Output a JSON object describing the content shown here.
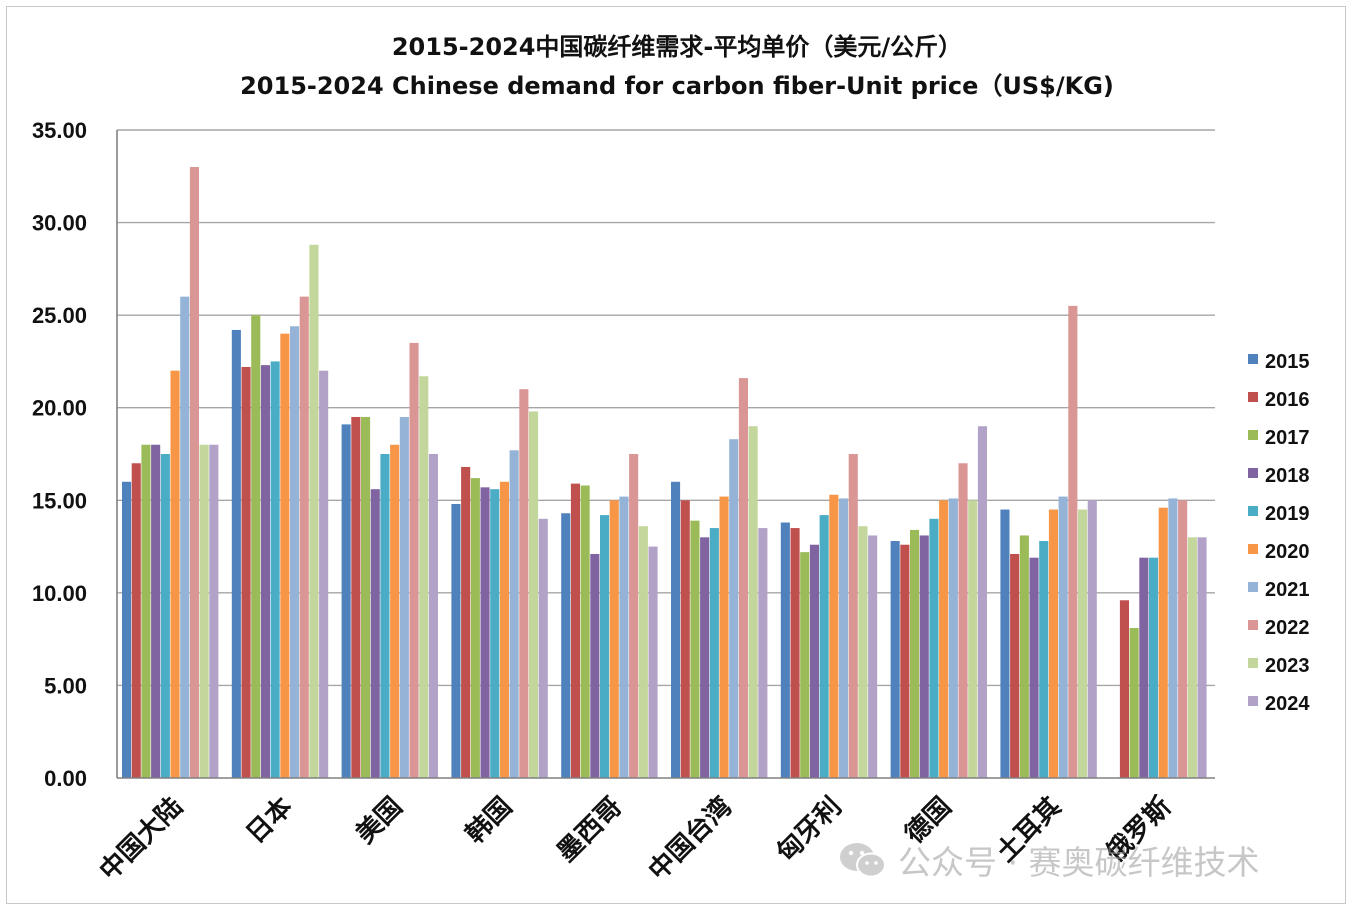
{
  "chart_data": {
    "type": "bar",
    "title": "2015-2024中国碳纤维需求-平均单价（美元/公斤）",
    "subtitle": "2015-2024 Chinese demand for carbon fiber-Unit price（US$/KG)",
    "xlabel": "",
    "ylabel": "",
    "ylim": [
      0,
      35
    ],
    "yticks": [
      "0.00",
      "5.00",
      "10.00",
      "15.00",
      "20.00",
      "25.00",
      "30.00",
      "35.00"
    ],
    "grid": true,
    "legend_position": "right",
    "categories": [
      "中国大陆",
      "日本",
      "美国",
      "韩国",
      "墨西哥",
      "中国台湾",
      "匈牙利",
      "德国",
      "土耳其",
      "俄罗斯"
    ],
    "series": [
      {
        "name": "2015",
        "color": "#4F81BD",
        "values": [
          16.0,
          24.2,
          19.1,
          14.8,
          14.3,
          16.0,
          13.8,
          12.8,
          14.5,
          0
        ]
      },
      {
        "name": "2016",
        "color": "#C0504D",
        "values": [
          17.0,
          22.2,
          19.5,
          16.8,
          15.9,
          15.0,
          13.5,
          12.6,
          12.1,
          9.6
        ]
      },
      {
        "name": "2017",
        "color": "#9BBB59",
        "values": [
          18.0,
          25.0,
          19.5,
          16.2,
          15.8,
          13.9,
          12.2,
          13.4,
          13.1,
          8.1
        ]
      },
      {
        "name": "2018",
        "color": "#8064A2",
        "values": [
          18.0,
          22.3,
          15.6,
          15.7,
          12.1,
          13.0,
          12.6,
          13.1,
          11.9,
          11.9
        ]
      },
      {
        "name": "2019",
        "color": "#4BACC6",
        "values": [
          17.5,
          22.5,
          17.5,
          15.6,
          14.2,
          13.5,
          14.2,
          14.0,
          12.8,
          11.9
        ]
      },
      {
        "name": "2020",
        "color": "#F79646",
        "values": [
          22.0,
          24.0,
          18.0,
          16.0,
          15.0,
          15.2,
          15.3,
          15.0,
          14.5,
          14.6
        ]
      },
      {
        "name": "2021",
        "color": "#95B3D7",
        "values": [
          26.0,
          24.4,
          19.5,
          17.7,
          15.2,
          18.3,
          15.1,
          15.1,
          15.2,
          15.1
        ]
      },
      {
        "name": "2022",
        "color": "#D99694",
        "values": [
          33.0,
          26.0,
          23.5,
          21.0,
          17.5,
          21.6,
          17.5,
          17.0,
          25.5,
          15.0
        ]
      },
      {
        "name": "2023",
        "color": "#C3D69B",
        "values": [
          18.0,
          28.8,
          21.7,
          19.8,
          13.6,
          19.0,
          13.6,
          15.0,
          14.5,
          13.0
        ]
      },
      {
        "name": "2024",
        "color": "#B2A2C7",
        "values": [
          18.0,
          22.0,
          17.5,
          14.0,
          12.5,
          13.5,
          13.1,
          19.0,
          15.0,
          13.0
        ]
      }
    ]
  },
  "watermark": {
    "text": "公众号 · 赛奥碳纤维技术",
    "icon": "wechat-icon"
  },
  "colors": {
    "grid": "#a6a6a6",
    "axis": "#808080",
    "text": "#111111"
  }
}
